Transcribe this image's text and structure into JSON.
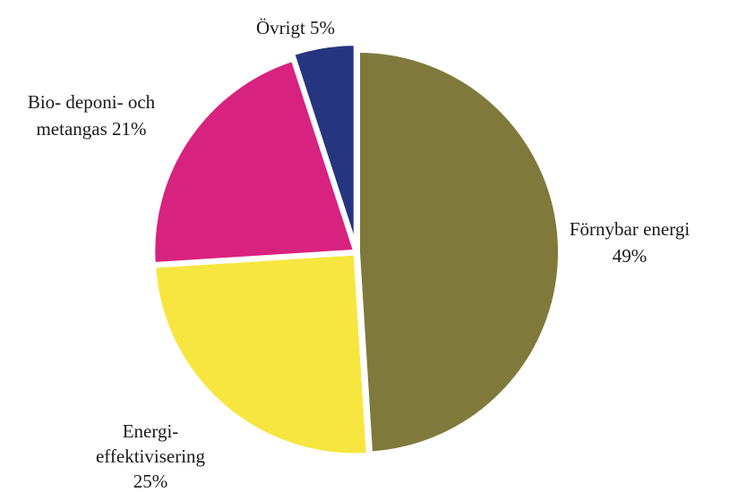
{
  "chart_data": {
    "type": "pie",
    "title": "",
    "slices": [
      {
        "name": "Förnybar energi",
        "value": 49,
        "color": "#7f7a3c",
        "label_lines": [
          "Förnybar energi",
          "49%"
        ]
      },
      {
        "name": "Energi-effektivisering",
        "value": 25,
        "color": "#f7e63f",
        "label_lines": [
          "Energi-",
          "effektivisering",
          "25%"
        ]
      },
      {
        "name": "Bio- deponi- och metangas",
        "value": 21,
        "color": "#d8227f",
        "label_lines": [
          "Bio-  deponi-  och",
          "metangas 21%"
        ]
      },
      {
        "name": "Övrigt",
        "value": 5,
        "color": "#26357f",
        "label_lines": [
          "Övrigt 5%"
        ]
      }
    ],
    "legend": "none",
    "start_angle": "12 o'clock",
    "direction": "clockwise"
  }
}
